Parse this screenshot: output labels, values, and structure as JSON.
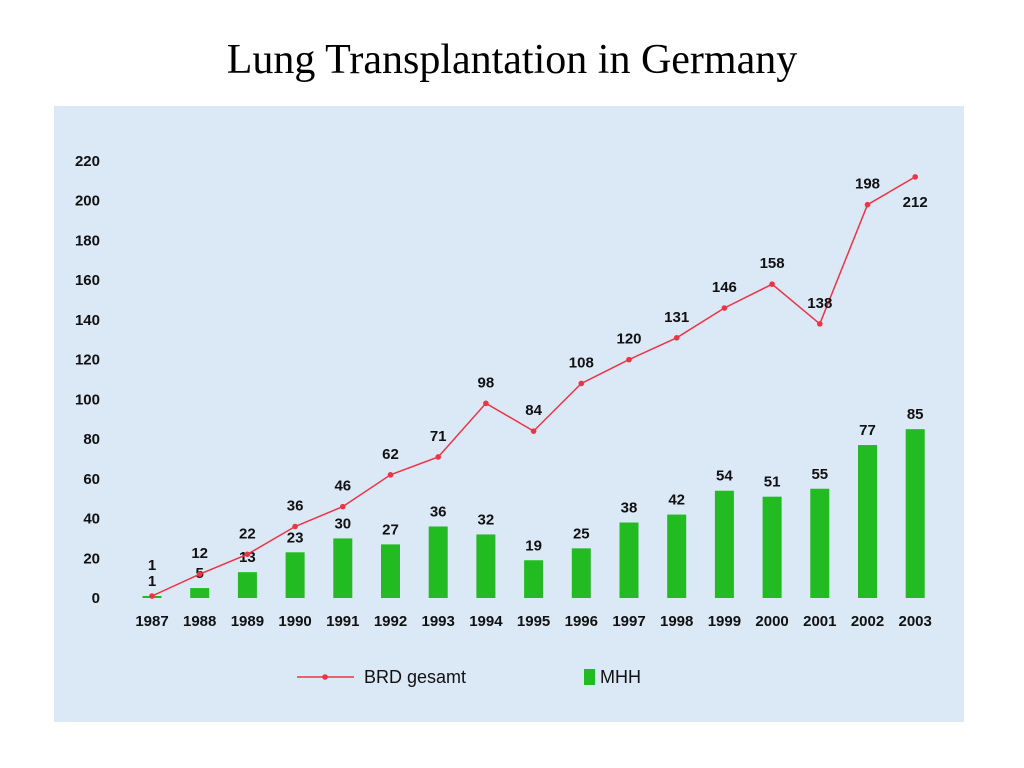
{
  "page": {
    "title": "Lung Transplantation in Germany"
  },
  "chart_data": {
    "type": "bar",
    "title": "",
    "xlabel": "",
    "ylabel": "",
    "ylim": [
      0,
      220
    ],
    "yticks": [
      0,
      20,
      40,
      60,
      80,
      100,
      120,
      140,
      160,
      180,
      200,
      220
    ],
    "categories": [
      "1987",
      "1988",
      "1989",
      "1990",
      "1991",
      "1992",
      "1993",
      "1994",
      "1995",
      "1996",
      "1997",
      "1998",
      "1999",
      "2000",
      "2001",
      "2002",
      "2003"
    ],
    "series": [
      {
        "name": "BRD gesamt",
        "type": "line",
        "color": "#ee3344",
        "values": [
          1,
          12,
          22,
          36,
          46,
          62,
          71,
          98,
          84,
          108,
          120,
          131,
          146,
          158,
          138,
          198,
          212
        ]
      },
      {
        "name": "MHH",
        "type": "bar",
        "color": "#22bb22",
        "values": [
          1,
          5,
          13,
          23,
          30,
          27,
          36,
          32,
          19,
          25,
          38,
          42,
          54,
          51,
          55,
          77,
          85
        ]
      }
    ],
    "legend_position": "bottom",
    "grid": false,
    "background": "#dbe8f6"
  }
}
